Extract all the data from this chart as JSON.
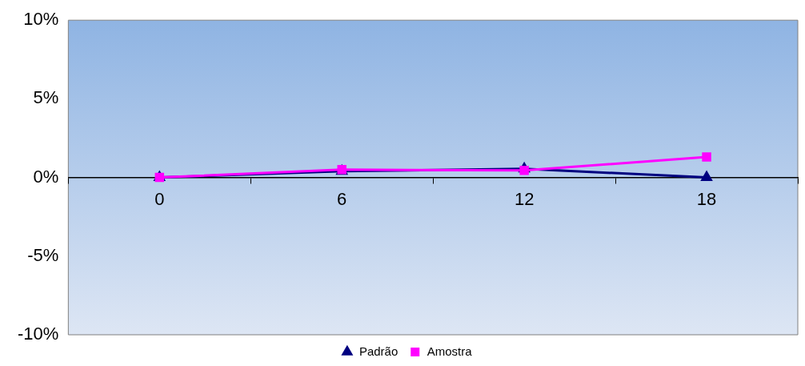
{
  "chart_data": {
    "type": "line",
    "categories": [
      "0",
      "6",
      "12",
      "18"
    ],
    "series": [
      {
        "name": "Padrão",
        "color": "#000080",
        "marker": "triangle",
        "values": [
          0,
          0.4,
          0.55,
          0
        ]
      },
      {
        "name": "Amostra",
        "color": "#ff00ff",
        "marker": "square",
        "values": [
          0,
          0.5,
          0.45,
          1.3
        ]
      }
    ],
    "ylim": [
      -10,
      10
    ],
    "yticks": [
      {
        "value": -10,
        "label": "-10%"
      },
      {
        "value": -5,
        "label": "-5%"
      },
      {
        "value": 0,
        "label": "0%"
      },
      {
        "value": 5,
        "label": "5%"
      },
      {
        "value": 10,
        "label": "10%"
      }
    ],
    "grid": false,
    "legend": "bottom",
    "line_style": "solid"
  }
}
